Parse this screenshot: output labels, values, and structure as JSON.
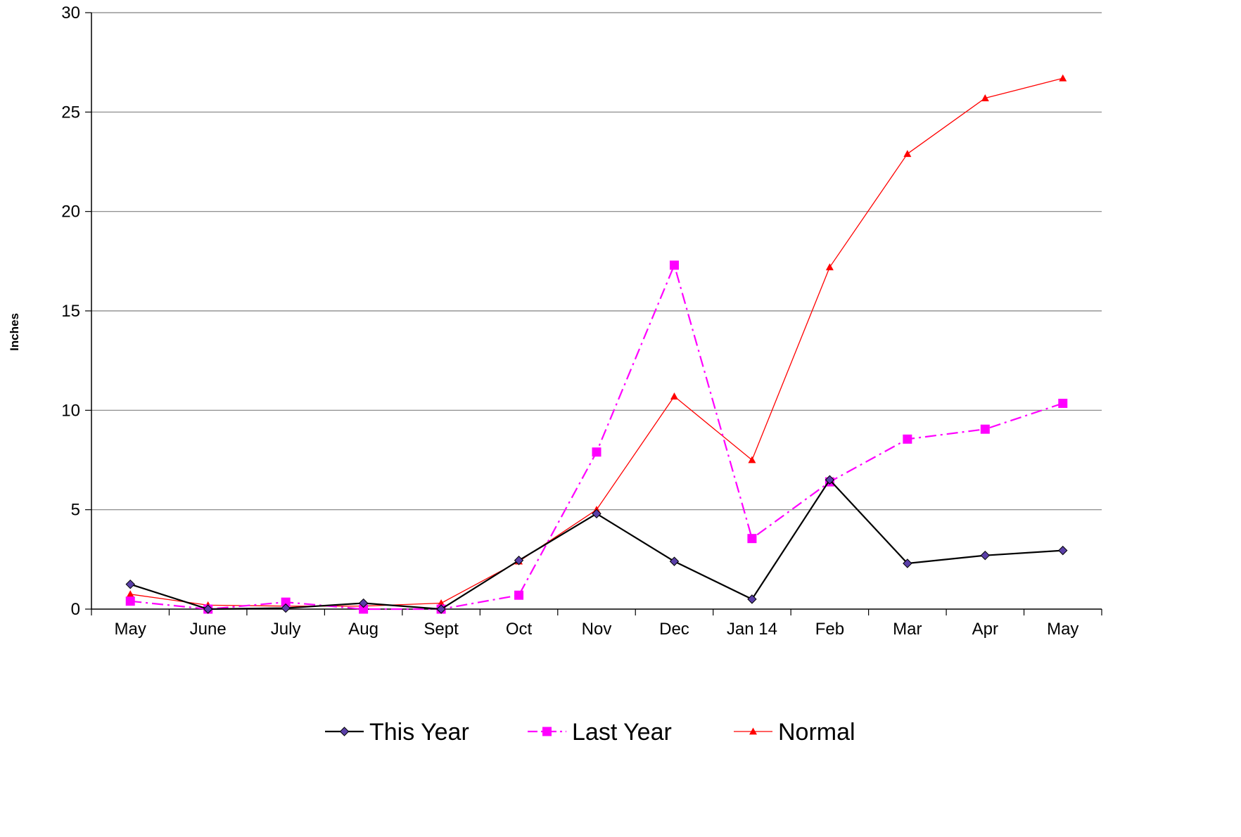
{
  "chart_data": {
    "type": "line",
    "title": "",
    "xlabel": "",
    "ylabel": "Inches",
    "ylim": [
      0,
      30
    ],
    "yticks": [
      0,
      5,
      10,
      15,
      20,
      25,
      30
    ],
    "grid": true,
    "legend_position": "bottom",
    "categories": [
      "May",
      "June",
      "July",
      "Aug",
      "Sept",
      "Oct",
      "Nov",
      "Dec",
      "Jan 14",
      "Feb",
      "Mar",
      "Apr",
      "May"
    ],
    "series": [
      {
        "name": "This Year",
        "color": "#000000",
        "marker_color": "#5a3fa8",
        "marker": "diamond",
        "dash": "solid",
        "values": [
          1.25,
          0.0,
          0.05,
          0.3,
          0.0,
          2.45,
          4.8,
          2.4,
          0.5,
          6.5,
          2.3,
          2.7,
          2.95
        ]
      },
      {
        "name": "Last Year",
        "color": "#ff00ff",
        "marker_color": "#ff00ff",
        "marker": "square",
        "dash": "dashdot",
        "values": [
          0.4,
          0.0,
          0.35,
          0.0,
          0.0,
          0.7,
          7.9,
          17.3,
          3.55,
          6.4,
          8.55,
          9.05,
          10.35
        ]
      },
      {
        "name": "Normal",
        "color": "#ff0000",
        "marker_color": "#ff0000",
        "marker": "triangle",
        "dash": "solid",
        "values": [
          0.75,
          0.2,
          0.15,
          0.15,
          0.3,
          2.4,
          5.0,
          10.7,
          7.5,
          17.2,
          22.9,
          25.7,
          26.7
        ]
      }
    ]
  }
}
